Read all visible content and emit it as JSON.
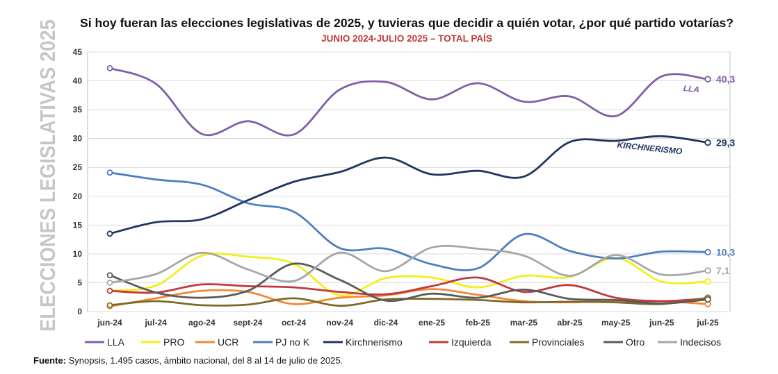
{
  "chart_data": {
    "type": "line",
    "title": "Si hoy fueran las elecciones legislativas de 2025, y tuvieras que decidir a quién votar, ¿por qué partido votarías?",
    "subtitle": "JUNIO 2024-JULIO 2025 – TOTAL PAÍS",
    "side_label": "ELECCIONES LEGISLATIVAS 2025",
    "xlabel": "",
    "ylabel": "",
    "ylim": [
      0,
      45
    ],
    "yticks": [
      0,
      5,
      10,
      15,
      20,
      25,
      30,
      35,
      40,
      45
    ],
    "categories": [
      "jun-24",
      "jul-24",
      "ago-24",
      "sept-24",
      "oct-24",
      "nov-24",
      "dic-24",
      "ene-25",
      "feb-25",
      "mar-25",
      "abr-25",
      "may-25",
      "jun-25",
      "jul-25"
    ],
    "grid": true,
    "legend_position": "bottom",
    "series": [
      {
        "name": "LLA",
        "color": "#7f5fa8",
        "values": [
          42.2,
          39.5,
          30.8,
          33.0,
          30.7,
          38.5,
          39.8,
          36.8,
          39.6,
          36.4,
          37.3,
          33.9,
          40.8,
          40.3
        ]
      },
      {
        "name": "PRO",
        "color": "#f2ef1a",
        "values": [
          3.6,
          4.5,
          9.7,
          9.5,
          8.3,
          2.8,
          5.8,
          5.9,
          4.2,
          6.2,
          6.0,
          9.3,
          5.2,
          5.2
        ]
      },
      {
        "name": "UCR",
        "color": "#f58634",
        "values": [
          0.9,
          2.3,
          3.6,
          3.4,
          1.3,
          2.4,
          2.8,
          3.9,
          2.9,
          1.8,
          1.6,
          1.9,
          1.8,
          1.3
        ]
      },
      {
        "name": "PJ no K",
        "color": "#4c7ec1",
        "values": [
          24.1,
          22.9,
          22.0,
          18.8,
          17.3,
          11.0,
          10.9,
          8.2,
          7.5,
          13.4,
          10.5,
          9.2,
          10.4,
          10.3
        ]
      },
      {
        "name": "Kirchnerismo",
        "color": "#1f3560",
        "values": [
          13.5,
          15.5,
          16.0,
          19.3,
          22.5,
          24.2,
          26.7,
          23.8,
          24.4,
          23.4,
          29.4,
          29.6,
          30.4,
          29.3
        ]
      },
      {
        "name": "Izquierda",
        "color": "#c0393b",
        "values": [
          3.6,
          3.3,
          4.7,
          4.4,
          4.2,
          3.4,
          3.0,
          4.4,
          5.9,
          3.4,
          4.6,
          2.4,
          1.8,
          2.3
        ]
      },
      {
        "name": "Provinciales",
        "color": "#7d6a27",
        "values": [
          1.1,
          1.8,
          1.1,
          1.2,
          2.3,
          1.0,
          2.1,
          2.2,
          2.0,
          1.6,
          1.7,
          1.6,
          1.3,
          2.4
        ]
      },
      {
        "name": "Otro",
        "color": "#5a5a5a",
        "values": [
          6.3,
          3.3,
          2.4,
          3.6,
          8.3,
          5.5,
          1.9,
          3.1,
          2.4,
          3.8,
          2.2,
          2.0,
          1.4,
          2.1
        ]
      },
      {
        "name": "Indecisos",
        "color": "#a6a6a6",
        "values": [
          5.0,
          6.5,
          10.2,
          7.3,
          5.3,
          10.2,
          7.0,
          11.1,
          10.9,
          9.7,
          6.2,
          9.8,
          6.4,
          7.1
        ]
      }
    ],
    "end_labels": [
      {
        "series": "LLA",
        "text": "40,3"
      },
      {
        "series": "Kirchnerismo",
        "text": "29,3"
      },
      {
        "series": "PJ no K",
        "text": "10,3"
      },
      {
        "series": "Indecisos",
        "text": "7,1"
      }
    ],
    "inline_labels": [
      {
        "series": "LLA",
        "text": "LLA"
      },
      {
        "series": "Kirchnerismo",
        "text": "KIRCHNERISMO"
      }
    ]
  },
  "source": {
    "label": "Fuente:",
    "text": " Synopsis, 1.495 casos, ámbito nacional, del 8 al 14 de julio de 2025."
  }
}
